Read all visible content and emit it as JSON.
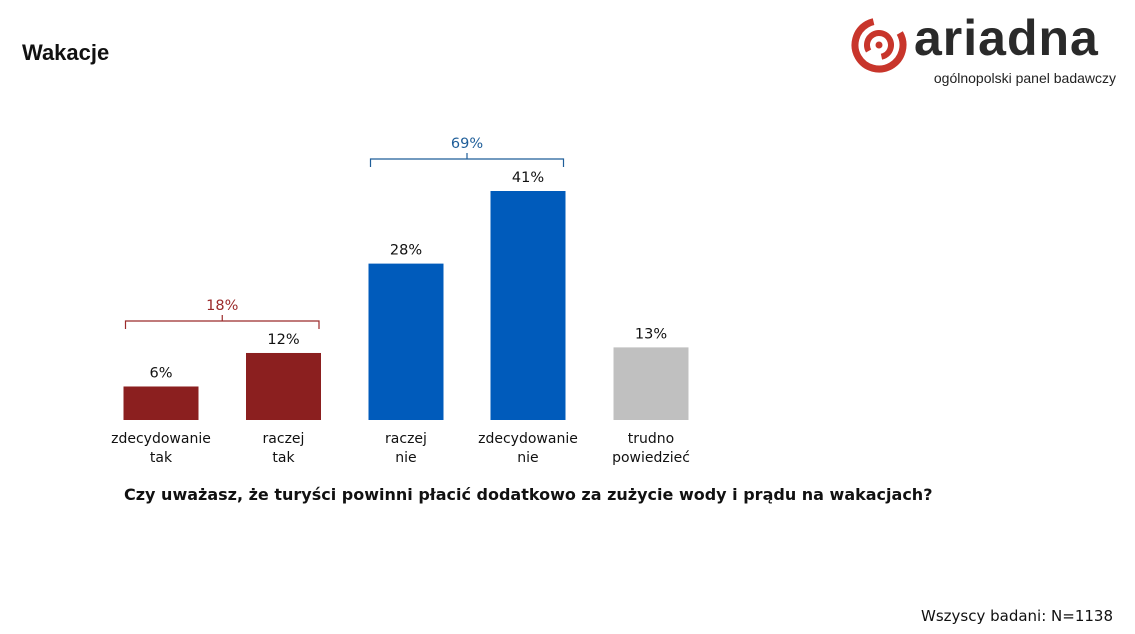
{
  "page": {
    "title": "Wakacje",
    "question": "Czy uważasz, że turyści powinni płacić dodatkowo za zużycie wody i prądu na wakacjach?",
    "sample": "Wszyscy badani: N=1138"
  },
  "logo": {
    "word": "ariadna",
    "tagline": "ogólnopolski panel badawczy",
    "accent_color": "#c8352b"
  },
  "chart_data": {
    "type": "bar",
    "categories": [
      [
        "zdecydowanie",
        "tak"
      ],
      [
        "raczej",
        "tak"
      ],
      [
        "raczej",
        "nie"
      ],
      [
        "zdecydowanie",
        "nie"
      ],
      [
        "trudno",
        "powiedzieć"
      ]
    ],
    "values": [
      6,
      12,
      28,
      41,
      13
    ],
    "value_labels": [
      "6%",
      "12%",
      "28%",
      "41%",
      "13%"
    ],
    "colors": [
      "#8b1f1f",
      "#8b1f1f",
      "#005bbb",
      "#005bbb",
      "#c0c0c0"
    ],
    "groups": [
      {
        "label": "18%",
        "from": 0,
        "to": 1,
        "color": "#9b2a2a"
      },
      {
        "label": "69%",
        "from": 2,
        "to": 3,
        "color": "#1f5e99"
      }
    ],
    "ylim": [
      0,
      41
    ],
    "grid": false,
    "legend": "none"
  }
}
